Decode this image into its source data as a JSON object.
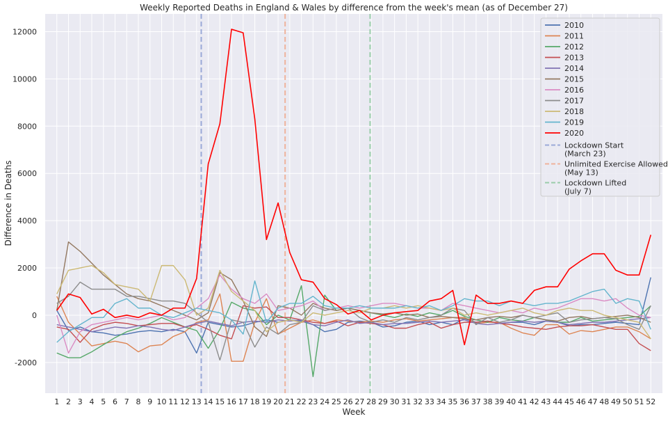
{
  "chart_data": {
    "type": "line",
    "title": "Weekly Reported Deaths in England & Wales by difference from the week's mean (as of December 27)",
    "xlabel": "Week",
    "ylabel": "Difference in Deaths",
    "xlim": [
      0,
      53
    ],
    "ylim": [
      -3300,
      12750
    ],
    "grid": true,
    "legend_position": "top-right",
    "x": [
      1,
      2,
      3,
      4,
      5,
      6,
      7,
      8,
      9,
      10,
      11,
      12,
      13,
      14,
      15,
      16,
      17,
      18,
      19,
      20,
      21,
      22,
      23,
      24,
      25,
      26,
      27,
      28,
      29,
      30,
      31,
      32,
      33,
      34,
      35,
      36,
      37,
      38,
      39,
      40,
      41,
      42,
      43,
      44,
      45,
      46,
      47,
      48,
      49,
      50,
      51,
      52
    ],
    "yticks": [
      -2000,
      0,
      2000,
      4000,
      6000,
      8000,
      10000,
      12000
    ],
    "series": [
      {
        "name": "2010",
        "color": "#4c72b0",
        "values": [
          200,
          -650,
          -500,
          -700,
          -750,
          -850,
          -800,
          -700,
          -650,
          -700,
          -600,
          -700,
          -1600,
          -300,
          -400,
          -500,
          -450,
          -300,
          -200,
          -300,
          -200,
          -250,
          -400,
          -700,
          -600,
          -300,
          -250,
          -300,
          -500,
          -450,
          -300,
          -250,
          -400,
          -300,
          -400,
          -150,
          -300,
          -250,
          -350,
          -300,
          -300,
          -400,
          -250,
          -300,
          -450,
          -400,
          -400,
          -350,
          -300,
          -350,
          -400,
          1600
        ]
      },
      {
        "name": "2011",
        "color": "#dd8452",
        "values": [
          800,
          -300,
          -800,
          -1300,
          -1200,
          -1100,
          -1200,
          -1550,
          -1300,
          -1250,
          -900,
          -700,
          -300,
          -200,
          900,
          -1950,
          -1950,
          -300,
          700,
          -800,
          -550,
          -300,
          -200,
          -350,
          -200,
          -250,
          -300,
          -250,
          -300,
          -200,
          -150,
          -250,
          -200,
          -150,
          -100,
          -100,
          -350,
          -300,
          -300,
          -550,
          -750,
          -850,
          -400,
          -400,
          -800,
          -650,
          -700,
          -600,
          -500,
          -500,
          -700,
          -1000
        ]
      },
      {
        "name": "2012",
        "color": "#55a868",
        "values": [
          -1600,
          -1800,
          -1800,
          -1550,
          -1250,
          -950,
          -700,
          -550,
          -350,
          -100,
          -300,
          -500,
          -650,
          -1400,
          -600,
          550,
          300,
          200,
          -400,
          0,
          -200,
          1250,
          -2600,
          850,
          200,
          300,
          200,
          100,
          0,
          -100,
          50,
          -50,
          100,
          0,
          200,
          -50,
          -200,
          -300,
          -100,
          -200,
          -250,
          -100,
          -200,
          -300,
          -300,
          -100,
          -250,
          -200,
          -150,
          -100,
          -50,
          400
        ]
      },
      {
        "name": "2013",
        "color": "#c44e52",
        "values": [
          -500,
          -600,
          -1150,
          -600,
          -400,
          -300,
          -350,
          -450,
          -400,
          -350,
          -350,
          -500,
          -400,
          -600,
          -850,
          -1000,
          400,
          300,
          350,
          -100,
          -100,
          -200,
          -300,
          -350,
          -250,
          -450,
          -300,
          -350,
          -400,
          -550,
          -550,
          -400,
          -300,
          -550,
          -400,
          -300,
          -300,
          -250,
          -350,
          -400,
          -500,
          -550,
          -600,
          -500,
          -450,
          -450,
          -400,
          -500,
          -600,
          -600,
          -1200,
          -1500
        ]
      },
      {
        "name": "2014",
        "color": "#8172b3",
        "values": [
          -400,
          -500,
          -600,
          -700,
          -600,
          -500,
          -550,
          -450,
          -500,
          -600,
          -650,
          -500,
          -350,
          -250,
          -350,
          -450,
          -300,
          -250,
          -300,
          -200,
          -250,
          -200,
          -400,
          -450,
          -300,
          -200,
          -350,
          -300,
          -400,
          -350,
          -350,
          -300,
          -250,
          -300,
          -250,
          -200,
          -350,
          -400,
          -350,
          -300,
          -250,
          -300,
          -250,
          -300,
          -400,
          -350,
          -300,
          -300,
          -250,
          -200,
          -150,
          -100
        ]
      },
      {
        "name": "2015",
        "color": "#937860",
        "values": [
          200,
          3100,
          2700,
          2200,
          1700,
          1300,
          900,
          700,
          600,
          400,
          200,
          0,
          -200,
          100,
          1800,
          1500,
          600,
          -500,
          -900,
          400,
          300,
          0,
          500,
          300,
          200,
          300,
          200,
          100,
          50,
          100,
          0,
          50,
          -100,
          -50,
          -100,
          -150,
          -200,
          -100,
          -50,
          -100,
          0,
          -100,
          -200,
          -250,
          -100,
          -50,
          -150,
          -100,
          -50,
          0,
          -100,
          -300
        ]
      },
      {
        "name": "2016",
        "color": "#da8bc3",
        "values": [
          0,
          -1600,
          -700,
          -400,
          -300,
          -200,
          -100,
          -200,
          -100,
          0,
          -200,
          -100,
          300,
          700,
          1700,
          1100,
          700,
          500,
          900,
          200,
          300,
          400,
          600,
          200,
          300,
          400,
          300,
          400,
          500,
          500,
          400,
          300,
          300,
          200,
          500,
          400,
          300,
          200,
          100,
          200,
          100,
          300,
          200,
          300,
          500,
          700,
          700,
          600,
          700,
          300,
          0,
          -100
        ]
      },
      {
        "name": "2017",
        "color": "#8c8c8c",
        "values": [
          500,
          800,
          1400,
          1100,
          1100,
          1100,
          800,
          800,
          700,
          600,
          600,
          500,
          100,
          -300,
          -1900,
          -200,
          -300,
          -1350,
          -500,
          -800,
          -400,
          -300,
          400,
          200,
          300,
          300,
          -100,
          -300,
          -200,
          -300,
          -100,
          -200,
          -100,
          0,
          300,
          200,
          -400,
          -100,
          -300,
          -200,
          0,
          -100,
          0,
          100,
          -300,
          -200,
          -150,
          -100,
          -150,
          -400,
          -600,
          400
        ]
      },
      {
        "name": "2018",
        "color": "#ccb974",
        "values": [
          900,
          1900,
          2000,
          2100,
          1800,
          1300,
          1200,
          1100,
          600,
          2100,
          2100,
          1500,
          0,
          300,
          1900,
          1000,
          600,
          200,
          -700,
          -300,
          -200,
          -300,
          100,
          0,
          100,
          200,
          100,
          300,
          300,
          400,
          300,
          400,
          300,
          200,
          300,
          0,
          100,
          0,
          100,
          200,
          300,
          100,
          0,
          200,
          300,
          200,
          200,
          0,
          -100,
          -200,
          -300,
          -1000
        ]
      },
      {
        "name": "2019",
        "color": "#64b5cd",
        "values": [
          -1150,
          -700,
          -400,
          -100,
          -100,
          500,
          700,
          300,
          300,
          0,
          -100,
          100,
          300,
          200,
          100,
          -200,
          -800,
          1450,
          -300,
          300,
          500,
          500,
          800,
          400,
          300,
          300,
          400,
          300,
          300,
          300,
          400,
          300,
          400,
          200,
          400,
          700,
          600,
          600,
          400,
          600,
          500,
          400,
          500,
          500,
          600,
          800,
          1000,
          1100,
          500,
          700,
          600,
          -600
        ]
      },
      {
        "name": "2020",
        "color": "#ff0000",
        "values": [
          200,
          900,
          750,
          50,
          250,
          -100,
          0,
          -100,
          100,
          0,
          300,
          300,
          1550,
          6400,
          8100,
          12100,
          11950,
          8300,
          3200,
          4750,
          2650,
          1500,
          1400,
          700,
          450,
          50,
          200,
          -200,
          0,
          100,
          150,
          200,
          600,
          700,
          1050,
          -1250,
          850,
          500,
          500,
          600,
          500,
          1050,
          1200,
          1200,
          1950,
          2300,
          2600,
          2600,
          1900,
          1700,
          1700,
          3400
        ]
      }
    ],
    "annotations": [
      {
        "label": "Lockdown Start\n(March 23)",
        "x": 13.4,
        "color": "#9aa9d8",
        "style": "dashed"
      },
      {
        "label": "Unlimited Exercise Allowed\n(May 13)",
        "x": 20.6,
        "color": "#efb39c",
        "style": "dashed"
      },
      {
        "label": "Lockdown Lifted\n(July 7)",
        "x": 27.9,
        "color": "#99ccaa",
        "style": "dashed"
      }
    ]
  }
}
